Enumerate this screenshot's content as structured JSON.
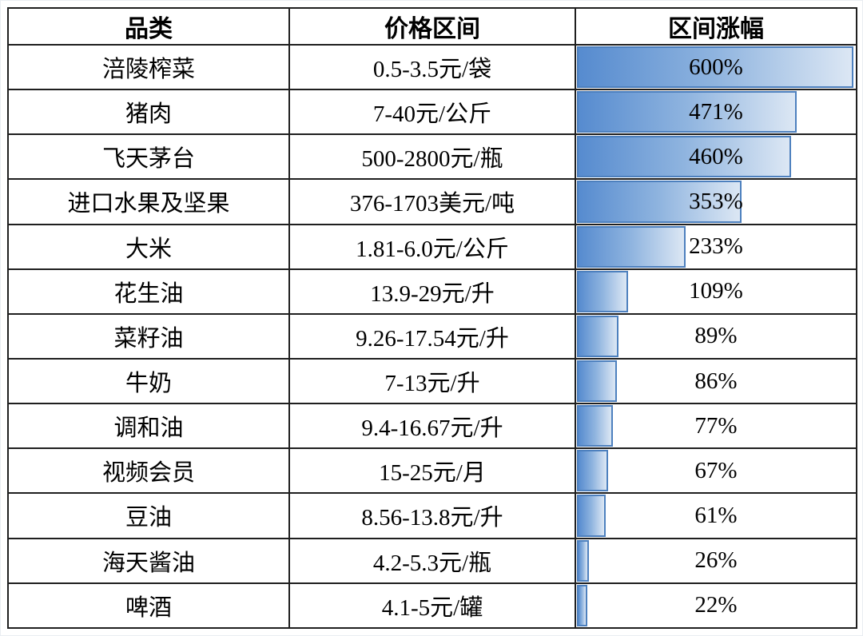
{
  "table": {
    "headers": [
      "品类",
      "价格区间",
      "区间涨幅"
    ],
    "rows": [
      {
        "category": "涪陵榨菜",
        "price_range": "0.5-3.5元/袋",
        "increase": "600%",
        "value": 600
      },
      {
        "category": "猪肉",
        "price_range": "7-40元/公斤",
        "increase": "471%",
        "value": 471
      },
      {
        "category": "飞天茅台",
        "price_range": "500-2800元/瓶",
        "increase": "460%",
        "value": 460
      },
      {
        "category": "进口水果及坚果",
        "price_range": "376-1703美元/吨",
        "increase": "353%",
        "value": 353
      },
      {
        "category": "大米",
        "price_range": "1.81-6.0元/公斤",
        "increase": "233%",
        "value": 233
      },
      {
        "category": "花生油",
        "price_range": "13.9-29元/升",
        "increase": "109%",
        "value": 109
      },
      {
        "category": "菜籽油",
        "price_range": "9.26-17.54元/升",
        "increase": "89%",
        "value": 89
      },
      {
        "category": "牛奶",
        "price_range": "7-13元/升",
        "increase": "86%",
        "value": 86
      },
      {
        "category": "调和油",
        "price_range": "9.4-16.67元/升",
        "increase": "77%",
        "value": 77
      },
      {
        "category": "视频会员",
        "price_range": "15-25元/月",
        "increase": "67%",
        "value": 67
      },
      {
        "category": "豆油",
        "price_range": "8.56-13.8元/升",
        "increase": "61%",
        "value": 61
      },
      {
        "category": "海天酱油",
        "price_range": "4.2-5.3元/瓶",
        "increase": "26%",
        "value": 26
      },
      {
        "category": "啤酒",
        "price_range": "4.1-5元/罐",
        "increase": "22%",
        "value": 22
      }
    ]
  },
  "chart_data": {
    "type": "bar",
    "orientation": "horizontal",
    "title": "",
    "columns": [
      "品类",
      "价格区间",
      "区间涨幅"
    ],
    "categories": [
      "涪陵榨菜",
      "猪肉",
      "飞天茅台",
      "进口水果及坚果",
      "大米",
      "花生油",
      "菜籽油",
      "牛奶",
      "调和油",
      "视频会员",
      "豆油",
      "海天酱油",
      "啤酒"
    ],
    "values": [
      600,
      471,
      460,
      353,
      233,
      109,
      89,
      86,
      77,
      67,
      61,
      26,
      22
    ],
    "labels": [
      "600%",
      "471%",
      "460%",
      "353%",
      "233%",
      "109%",
      "89%",
      "86%",
      "77%",
      "67%",
      "61%",
      "26%",
      "22%"
    ],
    "price_ranges": [
      "0.5-3.5元/袋",
      "7-40元/公斤",
      "500-2800元/瓶",
      "376-1703美元/吨",
      "1.81-6.0元/公斤",
      "13.9-29元/升",
      "9.26-17.54元/升",
      "7-13元/升",
      "9.4-16.67元/升",
      "15-25元/月",
      "8.56-13.8元/升",
      "4.2-5.3元/瓶",
      "4.1-5元/罐"
    ],
    "xlim": [
      0,
      600
    ],
    "grid": false,
    "legend": false,
    "bar_fill_gradient": [
      "#568bcf",
      "#dce7f4"
    ],
    "bar_border_color": "#4d80be",
    "table_border_color": "#1f1f1f"
  }
}
